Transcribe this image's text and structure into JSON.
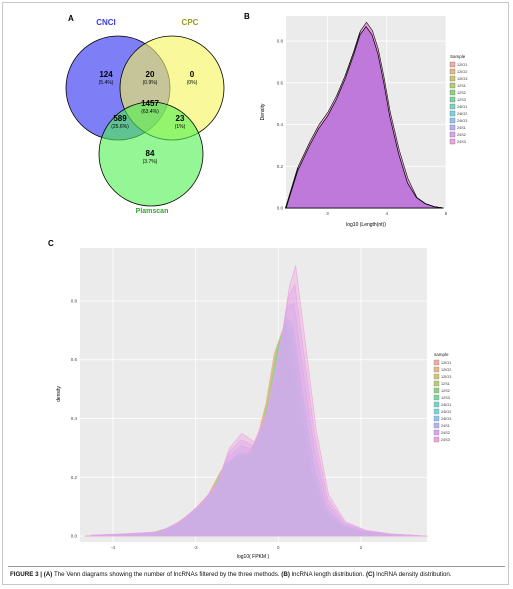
{
  "panels": {
    "a": "A",
    "b": "B",
    "c": "C"
  },
  "caption": {
    "fig": "FIGURE 3 |",
    "a_label": "(A)",
    "a_text": "The Venn diagrams showing the number of lncRNAs filtered by the three methods.",
    "b_label": "(B)",
    "b_text": "lncRNA length distribution.",
    "c_label": "(C)",
    "c_text": "lncRNA density distribution."
  },
  "venn": {
    "sets": [
      {
        "name": "CNCI",
        "color": "#5a5af5"
      },
      {
        "name": "CPC",
        "color": "#f5f55a"
      },
      {
        "name": "Plamscan",
        "color": "#4ef04e"
      }
    ],
    "regions": [
      {
        "key": "cnci_only",
        "count": "124",
        "pct": "(5.4%)"
      },
      {
        "key": "cnci_cpc",
        "count": "20",
        "pct": "(0.9%)"
      },
      {
        "key": "cpc_only",
        "count": "0",
        "pct": "(0%)"
      },
      {
        "key": "all_three",
        "count": "1457",
        "pct": "(63.4%)"
      },
      {
        "key": "cnci_plam",
        "count": "589",
        "pct": "(25.6%)"
      },
      {
        "key": "cpc_plam",
        "count": "23",
        "pct": "(1%)"
      },
      {
        "key": "plam_only",
        "count": "84",
        "pct": "(3.7%)"
      }
    ]
  },
  "chart_data": [
    {
      "type": "area",
      "panel": "B",
      "xlabel": "log10 (Length(nt))",
      "ylabel": "Density",
      "xlim": [
        2.3,
        5.0
      ],
      "ylim": [
        0,
        0.92
      ],
      "xticks": [
        "3",
        "4",
        "5"
      ],
      "yticks": [
        "0.0",
        "0.2",
        "0.4",
        "0.6",
        "0.8"
      ],
      "legend_title": "Sample",
      "legend_position": "right",
      "grid": true,
      "series": [
        {
          "name": "12IO1",
          "color": "#f4a9a3"
        },
        {
          "name": "12IO2",
          "color": "#e2b98a"
        },
        {
          "name": "12IO3",
          "color": "#cfc57c"
        },
        {
          "name": "12S1",
          "color": "#b3cd74"
        },
        {
          "name": "12S2",
          "color": "#8fd27c"
        },
        {
          "name": "12S3",
          "color": "#7dd5a6"
        },
        {
          "name": "24IO1",
          "color": "#7bd3c6"
        },
        {
          "name": "24IO2",
          "color": "#7ccfe0"
        },
        {
          "name": "24IO3",
          "color": "#8ec3f0"
        },
        {
          "name": "24S1",
          "color": "#b4b2f5"
        },
        {
          "name": "24S2",
          "color": "#d7a6f0"
        },
        {
          "name": "24S3",
          "color": "#f1a4de"
        }
      ],
      "x": [
        2.3,
        2.5,
        2.7,
        2.85,
        3.0,
        3.15,
        3.3,
        3.45,
        3.55,
        3.65,
        3.75,
        3.85,
        3.95,
        4.05,
        4.2,
        4.35,
        4.5,
        4.65,
        4.8,
        4.95
      ],
      "y": [
        0.0,
        0.18,
        0.3,
        0.38,
        0.44,
        0.52,
        0.62,
        0.74,
        0.83,
        0.87,
        0.83,
        0.74,
        0.6,
        0.44,
        0.26,
        0.12,
        0.05,
        0.02,
        0.006,
        0.0
      ]
    },
    {
      "type": "area",
      "panel": "C",
      "xlabel": "log10( FPKM )",
      "ylabel": "density",
      "xlim": [
        -4.8,
        3.6
      ],
      "ylim": [
        -0.02,
        0.98
      ],
      "xticks": [
        "-4",
        "-2",
        "0",
        "2"
      ],
      "yticks": [
        "0.0",
        "0.2",
        "0.4",
        "0.6",
        "0.8"
      ],
      "legend_title": "sample",
      "legend_position": "right",
      "grid": true,
      "series": [
        {
          "name": "12IO1",
          "color": "#f4a9a3"
        },
        {
          "name": "12IO2",
          "color": "#e2b98a"
        },
        {
          "name": "12IO3",
          "color": "#cfc57c"
        },
        {
          "name": "12S1",
          "color": "#b3cd74"
        },
        {
          "name": "12S2",
          "color": "#8fd27c"
        },
        {
          "name": "12S3",
          "color": "#7dd5a6"
        },
        {
          "name": "24IO1",
          "color": "#7bd3c6"
        },
        {
          "name": "24IO2",
          "color": "#7ccfe0"
        },
        {
          "name": "24IO3",
          "color": "#8ec3f0"
        },
        {
          "name": "24S1",
          "color": "#b4b2f5"
        },
        {
          "name": "24S2",
          "color": "#d7a6f0"
        },
        {
          "name": "24S3",
          "color": "#f1a4de"
        }
      ],
      "x": [
        -4.6,
        -4.2,
        -3.6,
        -3.0,
        -2.5,
        -2.0,
        -1.6,
        -1.3,
        -1.0,
        -0.7,
        -0.4,
        -0.2,
        0.0,
        0.15,
        0.3,
        0.5,
        0.8,
        1.1,
        1.5,
        2.0,
        2.6,
        3.2,
        3.5
      ],
      "y_low": [
        0.0,
        0.003,
        0.006,
        0.01,
        0.03,
        0.08,
        0.14,
        0.22,
        0.24,
        0.26,
        0.34,
        0.45,
        0.62,
        0.68,
        0.6,
        0.4,
        0.18,
        0.07,
        0.03,
        0.012,
        0.005,
        0.002,
        0.0
      ],
      "y_high": [
        0.004,
        0.006,
        0.01,
        0.015,
        0.05,
        0.11,
        0.18,
        0.3,
        0.35,
        0.32,
        0.42,
        0.56,
        0.71,
        0.85,
        0.92,
        0.7,
        0.36,
        0.14,
        0.05,
        0.02,
        0.008,
        0.003,
        0.0
      ]
    }
  ]
}
